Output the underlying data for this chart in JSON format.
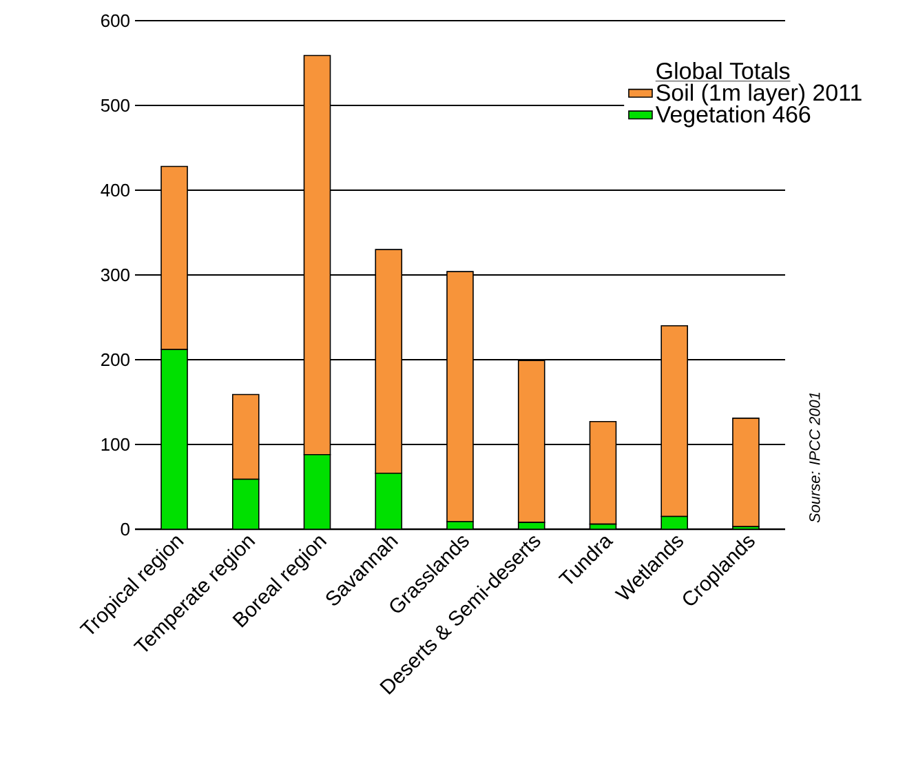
{
  "chart_data": {
    "type": "bar",
    "stacked": true,
    "categories": [
      "Tropical region",
      "Temperate region",
      "Boreal region",
      "Savannah",
      "Grasslands",
      "Deserts & Semi-deserts",
      "Tundra",
      "Wetlands",
      "Croplands"
    ],
    "series": [
      {
        "name": "Vegetation 466",
        "color": "#00e000",
        "values": [
          212,
          59,
          88,
          66,
          9,
          8,
          6,
          15,
          3
        ]
      },
      {
        "name": "Soil (1m layer) 2011",
        "color": "#f7943a",
        "values": [
          216,
          100,
          471,
          264,
          295,
          191,
          121,
          225,
          128
        ]
      }
    ],
    "legend_title": "Global Totals",
    "legend": "top right",
    "ylim": [
      0,
      600
    ],
    "yticks": [
      0,
      100,
      200,
      300,
      400,
      500,
      600
    ],
    "grid": "y",
    "annotations": [
      "Sourse: IPCC 2001"
    ]
  }
}
